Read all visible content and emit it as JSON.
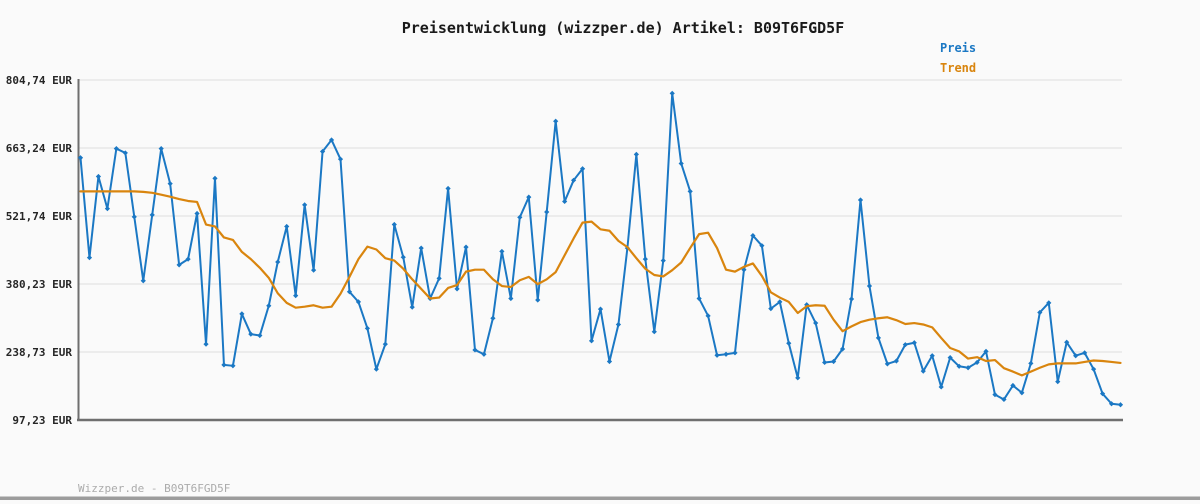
{
  "title": "Preisentwicklung (wizzper.de) Artikel: B09T6FGD5F",
  "legend": {
    "preis_label": "Preis",
    "trend_label": "Trend"
  },
  "footer": {
    "watermark": "Wizzper.de - B09T6FGD5F"
  },
  "colors": {
    "price": "#1b78c4",
    "trend": "#d9850e",
    "grid": "#e3e3e3",
    "spine": "#6f6f6f",
    "tick_label": "#262626",
    "title": "#1a1a1a",
    "footer_text": "#ababab",
    "bottom_bar": "#9c9c9c",
    "background": "#fafafa"
  },
  "y_axis": {
    "tick_labels": [
      "804,74 EUR",
      "663,24 EUR",
      "521,74 EUR",
      "380,23 EUR",
      "238,73 EUR",
      "97,23 EUR"
    ],
    "tick_values": [
      804.74,
      663.24,
      521.74,
      380.23,
      238.73,
      97.23
    ]
  },
  "chart_data": {
    "type": "line",
    "title": "Preisentwicklung (wizzper.de) Artikel: B09T6FGD5F",
    "xlabel": "",
    "ylabel": "EUR",
    "ylim": [
      97.23,
      804.74
    ],
    "y_ticks": [
      804.74,
      663.24,
      521.74,
      380.23,
      238.73,
      97.23
    ],
    "x_tick_labels_visible": false,
    "grid": "horizontal",
    "legend_position": "top-right",
    "series": [
      {
        "name": "Preis",
        "color": "#1b78c4",
        "marker": "diamond",
        "values": [
          643,
          435,
          604,
          537,
          662,
          653,
          520,
          387,
          524,
          662,
          589,
          420,
          432,
          527,
          255,
          600,
          212,
          210,
          318,
          276,
          273,
          335,
          426,
          500,
          356,
          545,
          409,
          656,
          680,
          640,
          364,
          343,
          288,
          203,
          255,
          504,
          436,
          332,
          455,
          350,
          392,
          579,
          370,
          457,
          243,
          234,
          309,
          448,
          350,
          519,
          561,
          347,
          530,
          719,
          552,
          596,
          620,
          262,
          328,
          219,
          296,
          455,
          650,
          432,
          281,
          429,
          777,
          631,
          573,
          350,
          314,
          232,
          234,
          237,
          410,
          481,
          460,
          329,
          343,
          257,
          185,
          337,
          299,
          217,
          219,
          245,
          349,
          555,
          376,
          268,
          214,
          220,
          254,
          258,
          199,
          231,
          166,
          227,
          209,
          206,
          217,
          240,
          150,
          140,
          169,
          154,
          215,
          321,
          341,
          177,
          259,
          231,
          237,
          203,
          152,
          131,
          129
        ]
      },
      {
        "name": "Trend",
        "color": "#d9850e",
        "marker": "none",
        "values": [
          573,
          573,
          573,
          573,
          573,
          573,
          573,
          572,
          570,
          566,
          562,
          557,
          553,
          551,
          504,
          500,
          477,
          472,
          447,
          432,
          414,
          393,
          361,
          341,
          331,
          333,
          336,
          331,
          333,
          360,
          395,
          432,
          458,
          452,
          434,
          429,
          412,
          390,
          370,
          350,
          352,
          372,
          378,
          406,
          410,
          410,
          390,
          376,
          374,
          388,
          395,
          380,
          390,
          405,
          440,
          475,
          508,
          510,
          494,
          491,
          470,
          457,
          434,
          412,
          399,
          396,
          409,
          425,
          455,
          484,
          487,
          455,
          410,
          406,
          416,
          423,
          397,
          363,
          352,
          343,
          320,
          334,
          336,
          335,
          306,
          282,
          292,
          301,
          306,
          309,
          311,
          305,
          297,
          299,
          296,
          290,
          268,
          247,
          240,
          225,
          228,
          220,
          222,
          205,
          198,
          190,
          198,
          206,
          213,
          215,
          215,
          215,
          218,
          221,
          220,
          218,
          216
        ]
      }
    ]
  }
}
